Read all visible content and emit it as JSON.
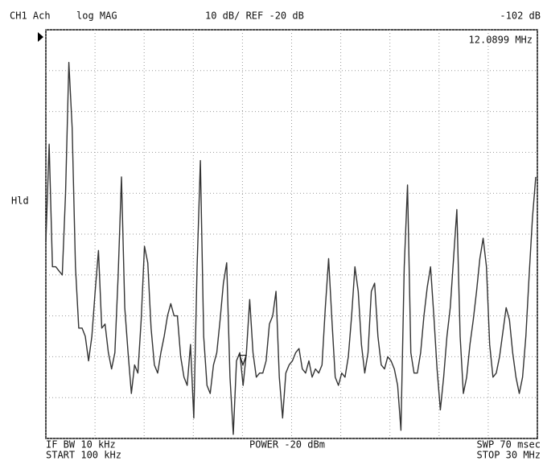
{
  "header": {
    "channel": "CH1 Ach",
    "format": "log MAG",
    "scale": "10 dB/ REF -20 dB",
    "marker_value": "-102 dB",
    "marker_freq": "12.0899 MHz"
  },
  "side": {
    "hold": "Hld"
  },
  "footer": {
    "if_bw": "IF BW 10 kHz",
    "start": "START 100 kHz",
    "power": "POWER -20 dBm",
    "sweep": "SWP 70 msec",
    "stop": "STOP 30 MHz"
  },
  "chart_data": {
    "type": "line",
    "x": [
      0.1,
      0.3,
      0.5,
      0.7,
      0.9,
      1.1,
      1.3,
      1.5,
      1.7,
      1.9,
      2.1,
      2.3,
      2.5,
      2.7,
      2.9,
      3.1,
      3.3,
      3.5,
      3.7,
      3.9,
      4.1,
      4.3,
      4.5,
      4.7,
      4.9,
      5.1,
      5.3,
      5.5,
      5.7,
      5.9,
      6.1,
      6.3,
      6.5,
      6.7,
      6.9,
      7.1,
      7.3,
      7.5,
      7.7,
      7.9,
      8.1,
      8.3,
      8.5,
      8.7,
      8.9,
      9.1,
      9.3,
      9.5,
      9.7,
      9.9,
      10.1,
      10.3,
      10.5,
      10.7,
      10.9,
      11.1,
      11.3,
      11.5,
      11.7,
      11.9,
      12.1,
      12.3,
      12.5,
      12.7,
      12.9,
      13.1,
      13.3,
      13.5,
      13.7,
      13.9,
      14.1,
      14.3,
      14.5,
      14.7,
      14.9,
      15.1,
      15.3,
      15.5,
      15.7,
      15.9,
      16.1,
      16.3,
      16.5,
      16.7,
      16.9,
      17.1,
      17.3,
      17.5,
      17.7,
      17.9,
      18.1,
      18.3,
      18.5,
      18.7,
      18.9,
      19.1,
      19.3,
      19.5,
      19.7,
      19.9,
      20.1,
      20.3,
      20.5,
      20.7,
      20.9,
      21.1,
      21.3,
      21.5,
      21.7,
      21.9,
      22.1,
      22.3,
      22.5,
      22.7,
      22.9,
      23.1,
      23.3,
      23.5,
      23.7,
      23.9,
      24.1,
      24.3,
      24.5,
      24.7,
      24.9,
      25.1,
      25.3,
      25.5,
      25.7,
      25.9,
      26.1,
      26.3,
      26.5,
      26.7,
      26.9,
      27.1,
      27.3,
      27.5,
      27.7,
      27.9,
      28.1,
      28.3,
      28.5,
      28.7,
      28.9,
      29.1,
      29.3,
      29.5,
      29.7,
      29.9
    ],
    "series": [
      {
        "color": "#333333",
        "values": [
          -72,
          -48,
          -78,
          -78,
          -79,
          -80,
          -60,
          -28,
          -44,
          -78,
          -93,
          -93,
          -95,
          -101,
          -95,
          -84,
          -74,
          -93,
          -92,
          -99,
          -103,
          -99,
          -80,
          -56,
          -88,
          -99,
          -109,
          -102,
          -104,
          -91,
          -73,
          -77,
          -93,
          -102,
          -104,
          -99,
          -95,
          -90,
          -87,
          -90,
          -90,
          -100,
          -105,
          -107,
          -97,
          -115,
          -78,
          -52,
          -95,
          -107,
          -109,
          -102,
          -99,
          -91,
          -82,
          -77,
          -105,
          -119,
          -101,
          -99,
          -107,
          -99,
          -86,
          -99,
          -105,
          -104,
          -104,
          -101,
          -92,
          -90,
          -84,
          -105,
          -115,
          -104,
          -102,
          -101,
          -99,
          -98,
          -103,
          -104,
          -101,
          -105,
          -103,
          -104,
          -102,
          -88,
          -76,
          -91,
          -105,
          -107,
          -104,
          -105,
          -100,
          -90,
          -78,
          -84,
          -97,
          -104,
          -99,
          -84,
          -82,
          -95,
          -102,
          -103,
          -100,
          -101,
          -103,
          -107,
          -118,
          -78,
          -58,
          -99,
          -104,
          -104,
          -99,
          -90,
          -83,
          -78,
          -90,
          -103,
          -113,
          -105,
          -95,
          -88,
          -76,
          -64,
          -95,
          -109,
          -105,
          -97,
          -91,
          -84,
          -76,
          -71,
          -78,
          -97,
          -105,
          -104,
          -100,
          -94,
          -88,
          -91,
          -99,
          -105,
          -109,
          -105,
          -95,
          -80,
          -66,
          -56
        ]
      }
    ],
    "xlim": [
      0.1,
      30
    ],
    "ylim": [
      -120,
      -20
    ],
    "xticks": [
      0.1,
      3.09,
      6.08,
      9.07,
      12.06,
      15.05,
      18.04,
      21.03,
      24.02,
      27.01,
      30
    ],
    "yticks": [
      -120,
      -110,
      -100,
      -90,
      -80,
      -70,
      -60,
      -50,
      -40,
      -30,
      -20
    ],
    "grid": true,
    "marker": {
      "x": 12.0899,
      "value": -102
    }
  }
}
